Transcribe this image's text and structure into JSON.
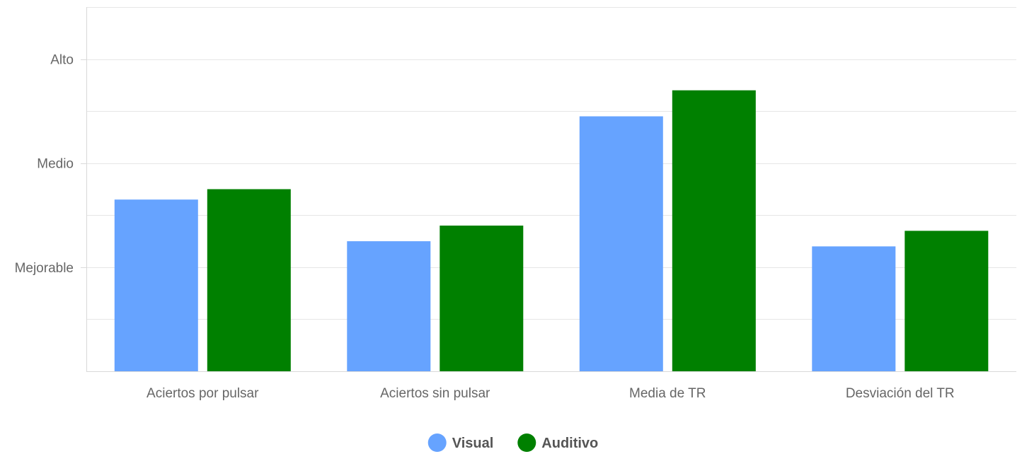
{
  "chart_data": {
    "type": "bar",
    "title": "",
    "xlabel": "",
    "ylabel": "",
    "categories": [
      "Aciertos por pulsar",
      "Aciertos sin pulsar",
      "Media de TR",
      "Desviación del TR"
    ],
    "ylim": [
      0,
      3.5
    ],
    "y_ticks": [
      {
        "value": 1,
        "label": "Mejorable"
      },
      {
        "value": 2,
        "label": "Medio"
      },
      {
        "value": 3,
        "label": "Alto"
      }
    ],
    "grid": true,
    "legend_position": "bottom-center",
    "series": [
      {
        "name": "Visual",
        "color": "#66a3ff",
        "values": [
          1.65,
          1.25,
          2.45,
          1.2
        ]
      },
      {
        "name": "Auditivo",
        "color": "#008000",
        "values": [
          1.75,
          1.4,
          2.7,
          1.35
        ]
      }
    ]
  }
}
